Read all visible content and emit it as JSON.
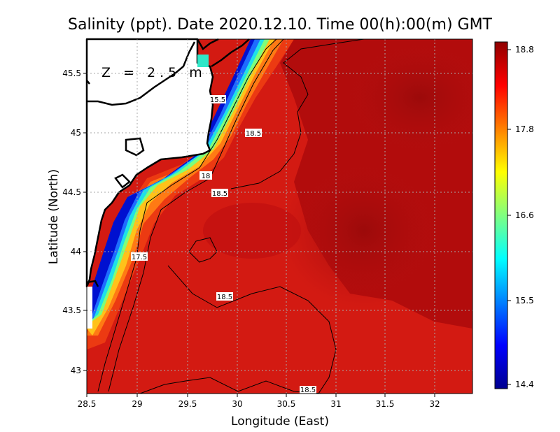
{
  "title": "Salinity (ppt). Date 2020.12.10. Time 00(h):00(m) GMT",
  "depth_label": "Z = 2.5 m",
  "xlabel": "Longitude (East)",
  "ylabel": "Latitude (North)",
  "x_ticks": [
    "28.5",
    "29",
    "29.5",
    "30",
    "30.5",
    "31",
    "31.5",
    "32"
  ],
  "y_ticks": [
    "43",
    "43.5",
    "44",
    "44.5",
    "45",
    "45.5"
  ],
  "colorbar": {
    "ticks": [
      "14.4",
      "15.5",
      "16.6",
      "17.8",
      "18.8"
    ],
    "min": 14.4,
    "max": 18.8,
    "colors": [
      "#00008f",
      "#0000ff",
      "#0080ff",
      "#00ffff",
      "#80ff80",
      "#ffff00",
      "#ff8000",
      "#ff0000",
      "#8f0000"
    ]
  },
  "contour_labels": [
    "15.5",
    "18.5",
    "18",
    "18.5",
    "17.5",
    "18.5",
    "18.5"
  ],
  "map": {
    "lon_range": [
      28.5,
      32.4
    ],
    "lat_range": [
      42.8,
      45.8
    ],
    "grid": true
  }
}
